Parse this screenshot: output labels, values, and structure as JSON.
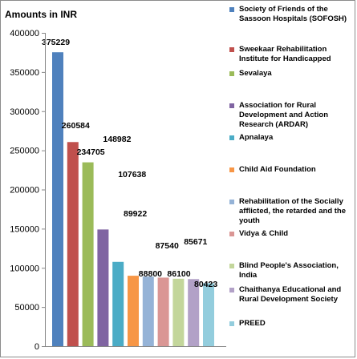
{
  "chart_data": {
    "type": "bar",
    "title": "",
    "ylabel": "Amounts in INR",
    "xlabel": "",
    "ylim": [
      0,
      400000
    ],
    "yticks": [
      0,
      50000,
      100000,
      150000,
      200000,
      250000,
      300000,
      350000,
      400000
    ],
    "grid": false,
    "legend_position": "right",
    "series": [
      {
        "name": "Society of Friends of the Sassoon Hospitals (SOFOSH)",
        "value": 375229,
        "color": "#4f81bd"
      },
      {
        "name": "Sweekaar Rehabilitation Institute for Handicapped",
        "value": 260584,
        "color": "#c0504d"
      },
      {
        "name": "Sevalaya",
        "value": 234705,
        "color": "#9bbb59"
      },
      {
        "name": "Association for Rural Development and Action Research (ARDAR)",
        "value": 148982,
        "color": "#8064a2"
      },
      {
        "name": "Apnalaya",
        "value": 107638,
        "color": "#4bacc6"
      },
      {
        "name": "Child Aid Foundation",
        "value": 89922,
        "color": "#f79646"
      },
      {
        "name": "Rehabilitation of the Socially afflicted, the retarded and the youth",
        "value": 88800,
        "color": "#95b3d7"
      },
      {
        "name": "Vidya & Child",
        "value": 87540,
        "color": "#da9694"
      },
      {
        "name": "Blind People's Association, India",
        "value": 86100,
        "color": "#c3d69b"
      },
      {
        "name": "Chaithanya Educational and Rural Development Society",
        "value": 85671,
        "color": "#b2a1c7"
      },
      {
        "name": "PREED",
        "value": 80423,
        "color": "#93cddd"
      }
    ]
  }
}
